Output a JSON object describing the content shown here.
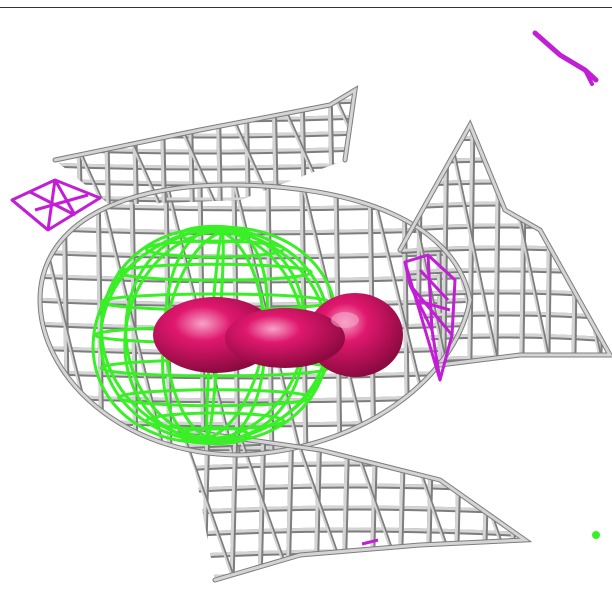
{
  "scene": {
    "background": "#ffffff",
    "colors": {
      "mesh_light": "#d4d4d4",
      "mesh_dark": "#7d7d7d",
      "green_mesh": "#39f026",
      "magenta_mesh": "#c21ed6",
      "pink_blob": "#e0186e",
      "pink_highlight": "#f7a3c8"
    },
    "objects": [
      "grey-wireframe-fish-mesh",
      "green-wireframe-sphere",
      "pink-solid-blob",
      "magenta-mesh-fragments",
      "green-dot"
    ]
  }
}
